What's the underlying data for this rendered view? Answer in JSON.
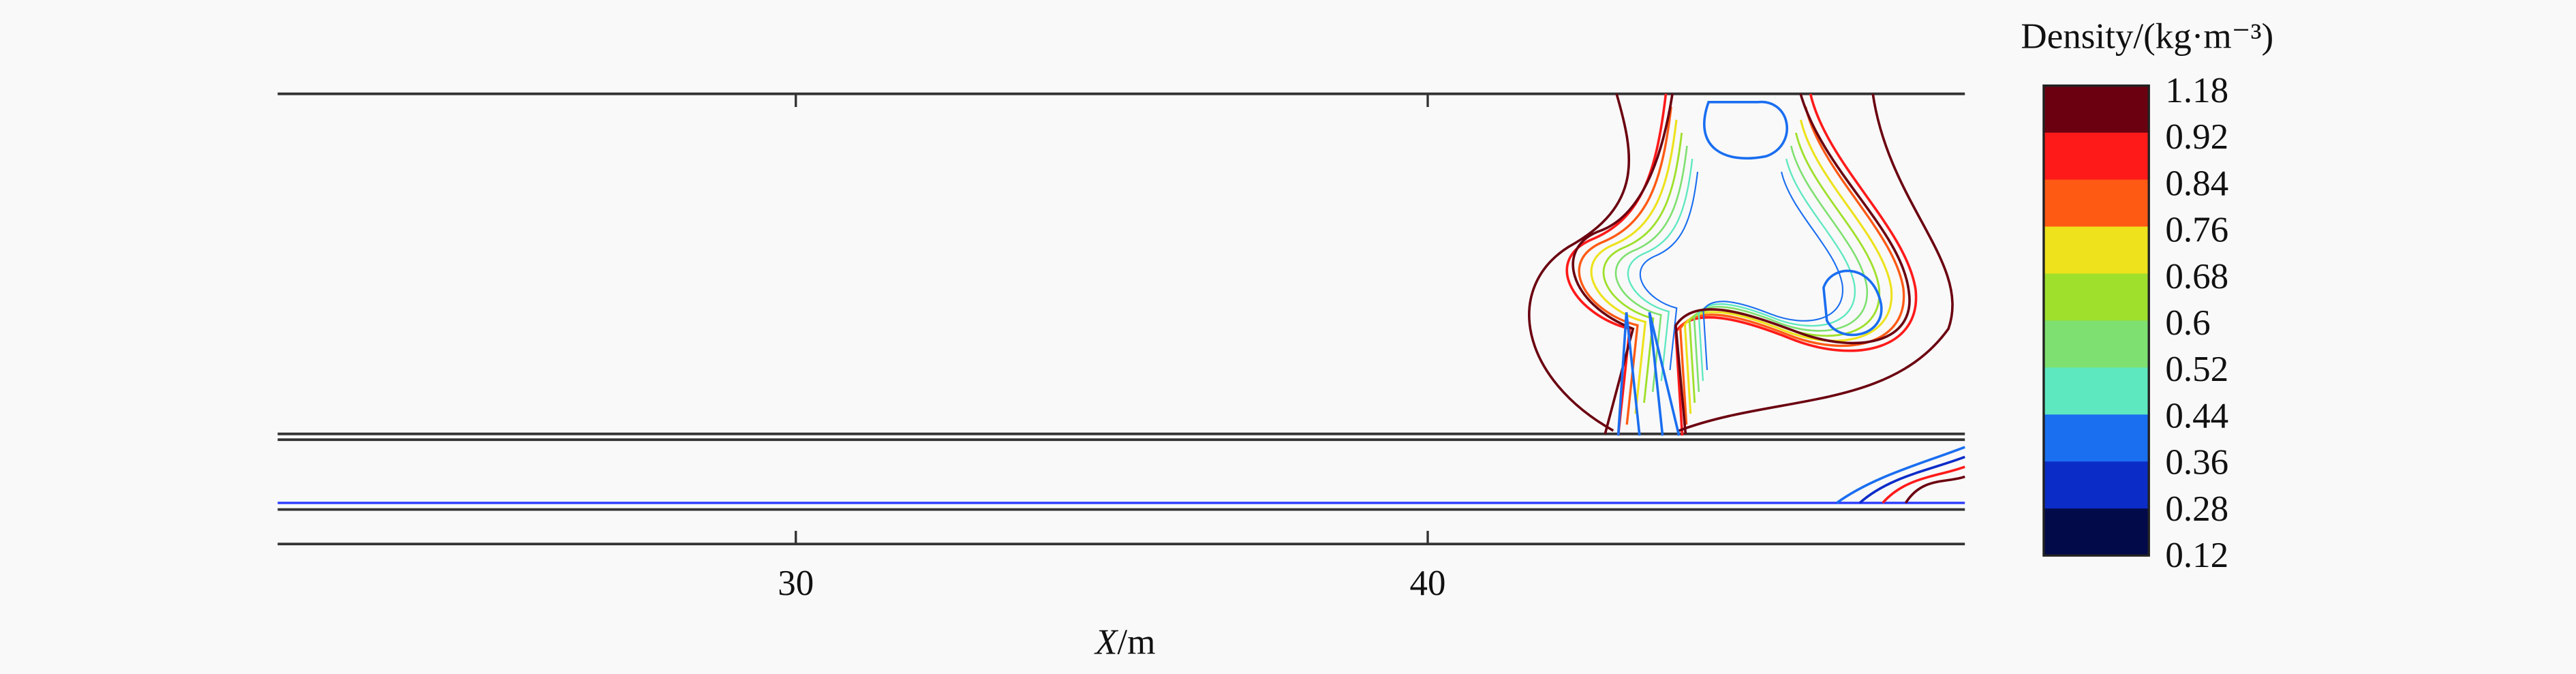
{
  "chart_data": {
    "type": "contour",
    "xlabel_var": "X",
    "xlabel_unit": "/m",
    "xlim": [
      21.8,
      48.5
    ],
    "xticks": [
      30,
      40
    ],
    "colorbar": {
      "title": "Density/(kg·m⁻³)",
      "levels": [
        1.18,
        0.92,
        0.84,
        0.76,
        0.68,
        0.6,
        0.52,
        0.44,
        0.36,
        0.28,
        0.12
      ],
      "colors": [
        "#6b0010",
        "#ff1a1a",
        "#ff5a14",
        "#ede21c",
        "#9fe02c",
        "#7ee070",
        "#5ee8c0",
        "#1a6ef0",
        "#0c2cc8",
        "#020a4a"
      ]
    }
  }
}
